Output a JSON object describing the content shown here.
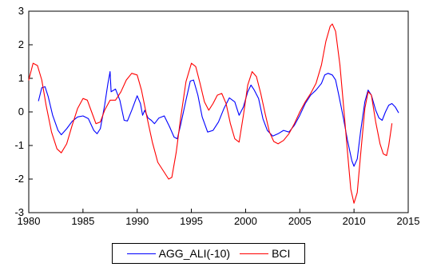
{
  "chart_data": {
    "type": "line",
    "title": "",
    "xlabel": "",
    "ylabel": "",
    "xlim": [
      1980,
      2015
    ],
    "ylim": [
      -3,
      3
    ],
    "xticks": [
      1980,
      1985,
      1990,
      1995,
      2000,
      2005,
      2010,
      2015
    ],
    "yticks": [
      -3,
      -2,
      -1,
      0,
      1,
      2,
      3
    ],
    "grid": false,
    "legend": "bottom",
    "series": [
      {
        "name": "AGG_ALI(-10)",
        "color": "#0000ff",
        "points": [
          [
            1980.9,
            0.33
          ],
          [
            1981.2,
            0.72
          ],
          [
            1981.5,
            0.75
          ],
          [
            1981.8,
            0.45
          ],
          [
            1982.2,
            -0.1
          ],
          [
            1982.7,
            -0.55
          ],
          [
            1983.0,
            -0.68
          ],
          [
            1983.5,
            -0.5
          ],
          [
            1984.0,
            -0.28
          ],
          [
            1984.5,
            -0.15
          ],
          [
            1985.0,
            -0.12
          ],
          [
            1985.5,
            -0.2
          ],
          [
            1986.0,
            -0.55
          ],
          [
            1986.3,
            -0.65
          ],
          [
            1986.6,
            -0.5
          ],
          [
            1987.0,
            0.2
          ],
          [
            1987.3,
            0.85
          ],
          [
            1987.5,
            1.2
          ],
          [
            1987.6,
            0.6
          ],
          [
            1988.0,
            0.68
          ],
          [
            1988.4,
            0.35
          ],
          [
            1988.8,
            -0.25
          ],
          [
            1989.1,
            -0.27
          ],
          [
            1989.5,
            0.05
          ],
          [
            1990.0,
            0.48
          ],
          [
            1990.3,
            0.25
          ],
          [
            1990.5,
            -0.1
          ],
          [
            1990.7,
            0.05
          ],
          [
            1991.0,
            -0.18
          ],
          [
            1991.3,
            -0.25
          ],
          [
            1991.6,
            -0.35
          ],
          [
            1992.0,
            -0.18
          ],
          [
            1992.5,
            -0.12
          ],
          [
            1993.0,
            -0.45
          ],
          [
            1993.4,
            -0.75
          ],
          [
            1993.7,
            -0.8
          ],
          [
            1994.0,
            -0.4
          ],
          [
            1994.5,
            0.35
          ],
          [
            1994.9,
            0.92
          ],
          [
            1995.2,
            0.95
          ],
          [
            1995.6,
            0.5
          ],
          [
            1996.0,
            -0.15
          ],
          [
            1996.5,
            -0.6
          ],
          [
            1997.0,
            -0.55
          ],
          [
            1997.5,
            -0.3
          ],
          [
            1998.0,
            0.1
          ],
          [
            1998.5,
            0.42
          ],
          [
            1999.0,
            0.3
          ],
          [
            1999.4,
            -0.1
          ],
          [
            1999.8,
            0.15
          ],
          [
            2000.2,
            0.6
          ],
          [
            2000.5,
            0.8
          ],
          [
            2000.8,
            0.65
          ],
          [
            2001.2,
            0.4
          ],
          [
            2001.6,
            -0.2
          ],
          [
            2002.0,
            -0.55
          ],
          [
            2002.5,
            -0.72
          ],
          [
            2003.0,
            -0.65
          ],
          [
            2003.5,
            -0.55
          ],
          [
            2004.0,
            -0.6
          ],
          [
            2004.5,
            -0.4
          ],
          [
            2005.0,
            -0.1
          ],
          [
            2005.5,
            0.25
          ],
          [
            2006.0,
            0.5
          ],
          [
            2006.5,
            0.65
          ],
          [
            2007.0,
            0.85
          ],
          [
            2007.3,
            1.1
          ],
          [
            2007.6,
            1.15
          ],
          [
            2008.0,
            1.1
          ],
          [
            2008.3,
            0.95
          ],
          [
            2008.6,
            0.5
          ],
          [
            2009.0,
            -0.15
          ],
          [
            2009.4,
            -0.85
          ],
          [
            2009.8,
            -1.45
          ],
          [
            2010.0,
            -1.62
          ],
          [
            2010.3,
            -1.4
          ],
          [
            2010.6,
            -0.6
          ],
          [
            2011.0,
            0.3
          ],
          [
            2011.3,
            0.65
          ],
          [
            2011.6,
            0.5
          ],
          [
            2012.0,
            0.05
          ],
          [
            2012.3,
            -0.18
          ],
          [
            2012.6,
            -0.25
          ],
          [
            2012.9,
            0.0
          ],
          [
            2013.2,
            0.2
          ],
          [
            2013.5,
            0.25
          ],
          [
            2013.8,
            0.15
          ],
          [
            2014.1,
            -0.02
          ]
        ]
      },
      {
        "name": "BCI",
        "color": "#ff0000",
        "points": [
          [
            1980.0,
            0.95
          ],
          [
            1980.4,
            1.45
          ],
          [
            1980.8,
            1.38
          ],
          [
            1981.2,
            0.95
          ],
          [
            1981.6,
            0.2
          ],
          [
            1982.1,
            -0.6
          ],
          [
            1982.6,
            -1.1
          ],
          [
            1983.0,
            -1.22
          ],
          [
            1983.5,
            -0.95
          ],
          [
            1984.0,
            -0.4
          ],
          [
            1984.5,
            0.1
          ],
          [
            1985.0,
            0.4
          ],
          [
            1985.4,
            0.35
          ],
          [
            1985.8,
            0.0
          ],
          [
            1986.2,
            -0.35
          ],
          [
            1986.6,
            -0.3
          ],
          [
            1987.0,
            0.05
          ],
          [
            1987.5,
            0.35
          ],
          [
            1988.0,
            0.35
          ],
          [
            1988.5,
            0.6
          ],
          [
            1989.0,
            0.95
          ],
          [
            1989.5,
            1.15
          ],
          [
            1990.0,
            1.1
          ],
          [
            1990.4,
            0.65
          ],
          [
            1990.9,
            -0.15
          ],
          [
            1991.4,
            -0.9
          ],
          [
            1991.9,
            -1.5
          ],
          [
            1992.4,
            -1.75
          ],
          [
            1992.9,
            -2.0
          ],
          [
            1993.2,
            -1.95
          ],
          [
            1993.6,
            -1.2
          ],
          [
            1994.0,
            -0.2
          ],
          [
            1994.5,
            0.9
          ],
          [
            1995.0,
            1.45
          ],
          [
            1995.4,
            1.35
          ],
          [
            1995.8,
            0.85
          ],
          [
            1996.2,
            0.3
          ],
          [
            1996.6,
            0.05
          ],
          [
            1997.0,
            0.25
          ],
          [
            1997.4,
            0.5
          ],
          [
            1997.8,
            0.55
          ],
          [
            1998.2,
            0.25
          ],
          [
            1998.6,
            -0.35
          ],
          [
            1999.0,
            -0.8
          ],
          [
            1999.4,
            -0.9
          ],
          [
            1999.8,
            -0.1
          ],
          [
            2000.2,
            0.8
          ],
          [
            2000.6,
            1.2
          ],
          [
            2001.0,
            1.05
          ],
          [
            2001.4,
            0.55
          ],
          [
            2001.8,
            -0.05
          ],
          [
            2002.2,
            -0.6
          ],
          [
            2002.6,
            -0.88
          ],
          [
            2003.0,
            -0.95
          ],
          [
            2003.5,
            -0.85
          ],
          [
            2004.0,
            -0.65
          ],
          [
            2004.5,
            -0.35
          ],
          [
            2005.0,
            0.0
          ],
          [
            2005.5,
            0.3
          ],
          [
            2006.0,
            0.55
          ],
          [
            2006.5,
            0.85
          ],
          [
            2007.0,
            1.4
          ],
          [
            2007.4,
            2.1
          ],
          [
            2007.8,
            2.55
          ],
          [
            2008.0,
            2.62
          ],
          [
            2008.3,
            2.4
          ],
          [
            2008.7,
            1.4
          ],
          [
            2009.0,
            0.3
          ],
          [
            2009.4,
            -1.2
          ],
          [
            2009.7,
            -2.3
          ],
          [
            2010.0,
            -2.72
          ],
          [
            2010.3,
            -2.4
          ],
          [
            2010.6,
            -1.3
          ],
          [
            2011.0,
            0.1
          ],
          [
            2011.3,
            0.6
          ],
          [
            2011.6,
            0.5
          ],
          [
            2012.0,
            -0.3
          ],
          [
            2012.4,
            -0.95
          ],
          [
            2012.7,
            -1.25
          ],
          [
            2013.0,
            -1.3
          ],
          [
            2013.2,
            -1.0
          ],
          [
            2013.5,
            -0.35
          ]
        ]
      }
    ]
  }
}
